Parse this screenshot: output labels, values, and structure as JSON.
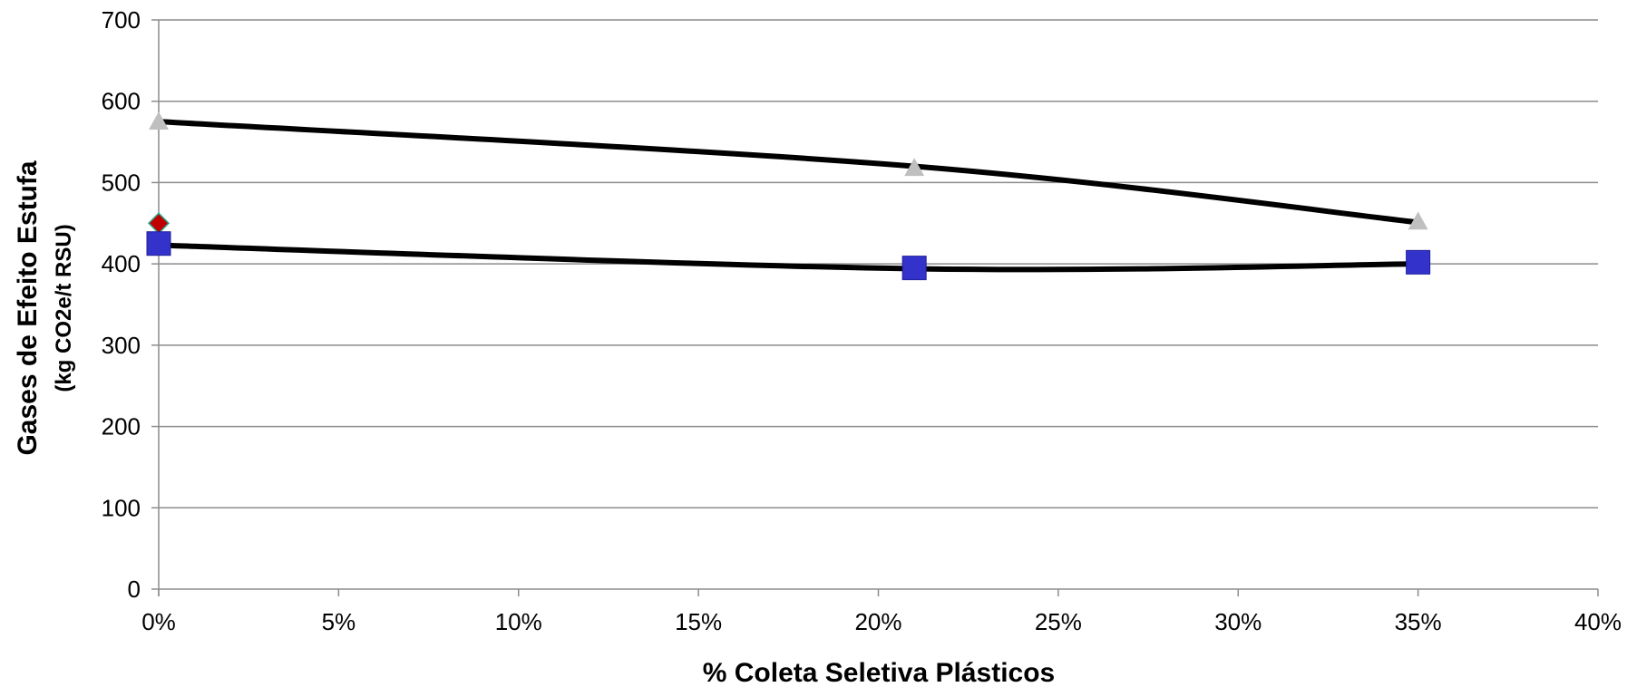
{
  "chart_data": {
    "type": "scatter",
    "xlabel": "% Coleta Seletiva Plásticos",
    "ylabel": "Gases de Efeito Estufa",
    "ylabel_sub": "(kg CO2e/t RSU)",
    "xlim": [
      0,
      40
    ],
    "ylim": [
      0,
      700
    ],
    "x_ticks": [
      0,
      5,
      10,
      15,
      20,
      25,
      30,
      35,
      40
    ],
    "x_tick_labels": [
      "0%",
      "5%",
      "10%",
      "15%",
      "20%",
      "25%",
      "30%",
      "35%",
      "40%"
    ],
    "y_ticks": [
      0,
      100,
      200,
      300,
      400,
      500,
      600,
      700
    ],
    "y_tick_labels": [
      "0",
      "100",
      "200",
      "300",
      "400",
      "500",
      "600",
      "700"
    ],
    "grid": "horizontal",
    "legend": "none",
    "series": [
      {
        "marker": "triangle",
        "color": "#bfbfbf",
        "x": [
          0,
          21,
          35
        ],
        "y": [
          575,
          518,
          452
        ],
        "trendline": {
          "color": "#000000",
          "x": [
            0,
            21,
            35
          ],
          "y": [
            575,
            520,
            451
          ]
        }
      },
      {
        "marker": "diamond",
        "color": "#c00000",
        "x": [
          0
        ],
        "y": [
          450
        ]
      },
      {
        "marker": "square",
        "color": "#3333cc",
        "x": [
          0,
          21,
          35
        ],
        "y": [
          425,
          395,
          402
        ],
        "trendline": {
          "color": "#000000",
          "x": [
            0,
            21,
            35
          ],
          "y": [
            423,
            394,
            400
          ]
        }
      }
    ]
  }
}
